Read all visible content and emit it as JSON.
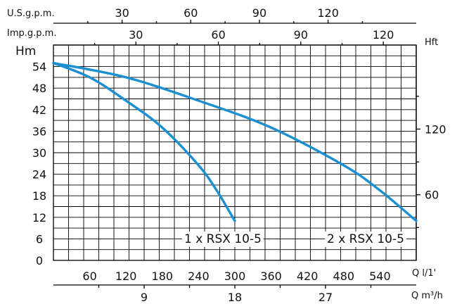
{
  "chart_data": {
    "type": "line",
    "top_axes": [
      {
        "label": "U.S.g.p.m.",
        "ticks": [
          30,
          60,
          90,
          120
        ]
      },
      {
        "label": "Imp.g.p.m.",
        "ticks": [
          30,
          60,
          90,
          120
        ]
      }
    ],
    "y_left": {
      "label": "Hm",
      "range": [
        0,
        60
      ],
      "ticks": [
        0,
        6,
        12,
        18,
        24,
        30,
        36,
        42,
        48,
        54
      ]
    },
    "y_right": {
      "label": "Hft",
      "ticks": [
        60,
        120
      ]
    },
    "x_primary": {
      "label": "Q l/1'",
      "range": [
        0,
        600
      ],
      "ticks": [
        60,
        120,
        180,
        240,
        300,
        360,
        420,
        480,
        540
      ]
    },
    "x_secondary": {
      "label": "Q m³/h",
      "ticks": [
        9,
        18,
        27
      ]
    },
    "grid": true,
    "series": [
      {
        "name": "1 x RSX 10-5",
        "x": [
          0,
          60,
          120,
          180,
          240,
          270,
          300
        ],
        "y": [
          55,
          51,
          44.5,
          37,
          26.5,
          19.5,
          11
        ]
      },
      {
        "name": "2 x RSX 10-5",
        "x": [
          0,
          120,
          240,
          360,
          480,
          540,
          600
        ],
        "y": [
          55,
          51,
          44.5,
          37,
          26.5,
          19.5,
          11
        ]
      }
    ]
  }
}
